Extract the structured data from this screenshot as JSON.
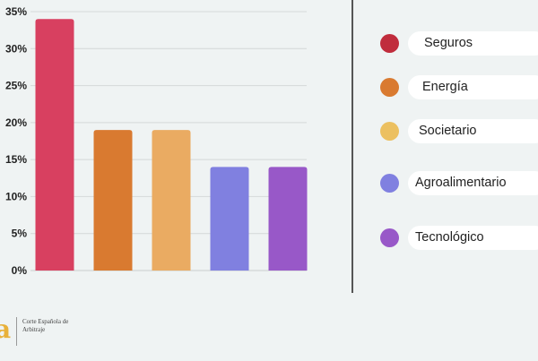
{
  "chart_data": {
    "type": "bar",
    "categories": [
      "Seguros",
      "Energía",
      "Societario",
      "Agroalimentario",
      "Tecnológico"
    ],
    "values": [
      34,
      19,
      19,
      14,
      14
    ],
    "colors": [
      "#d84060",
      "#d97a30",
      "#eaab62",
      "#8080e0",
      "#9858c8"
    ],
    "ylim": [
      0,
      35
    ],
    "yticks": [
      0,
      5,
      10,
      15,
      20,
      25,
      30,
      35
    ],
    "ytick_labels": [
      "0%",
      "5%",
      "10%",
      "15%",
      "20%",
      "25%",
      "30%",
      "35%"
    ],
    "grid": true,
    "title": "",
    "xlabel": "",
    "ylabel": ""
  },
  "legend": {
    "items": [
      {
        "label": "Seguros",
        "color": "#c02c3c"
      },
      {
        "label": "Energía",
        "color": "#d97a30"
      },
      {
        "label": "Societario",
        "color": "#ecc060"
      },
      {
        "label": "Agroalimentario",
        "color": "#8080e0"
      },
      {
        "label": "Tecnológico",
        "color": "#9858c8"
      }
    ]
  },
  "logo": {
    "mark": "a",
    "text": "Corte Española de Arbitraje",
    "color": "#e8b13a"
  }
}
